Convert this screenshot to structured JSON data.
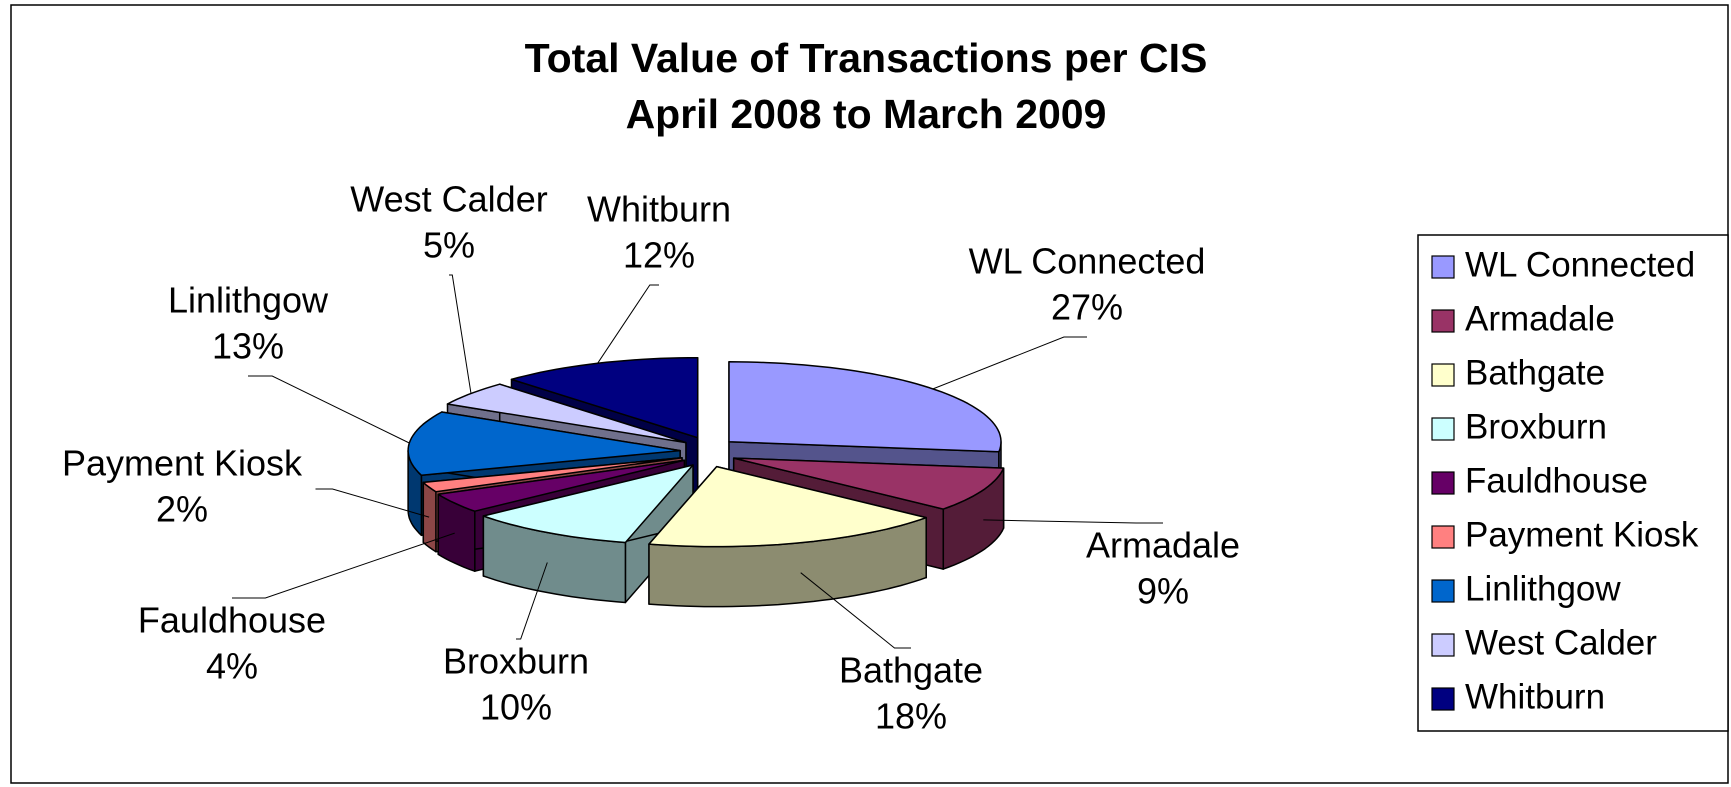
{
  "chart_data": {
    "type": "pie",
    "title": "Total Value of Transactions per CIS",
    "subtitle": "April 2008 to March 2009",
    "categories": [
      "WL Connected",
      "Armadale",
      "Bathgate",
      "Broxburn",
      "Fauldhouse",
      "Payment Kiosk",
      "Linlithgow",
      "West Calder",
      "Whitburn"
    ],
    "values": [
      27,
      9,
      18,
      10,
      4,
      2,
      13,
      5,
      12
    ],
    "value_labels": [
      "27%",
      "9%",
      "18%",
      "10%",
      "4%",
      "2%",
      "13%",
      "5%",
      "12%"
    ],
    "colors": [
      "#9999ff",
      "#993366",
      "#ffffcc",
      "#ccffff",
      "#660066",
      "#ff8080",
      "#0066cc",
      "#ccccff",
      "#000080"
    ],
    "legend": "right"
  }
}
